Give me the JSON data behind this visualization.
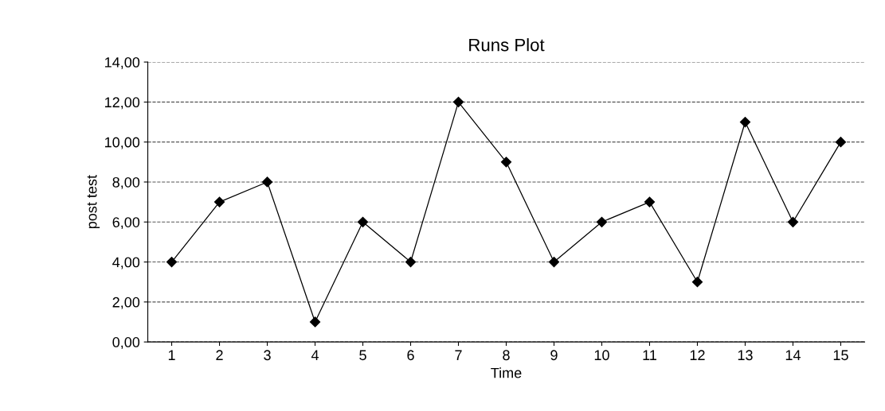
{
  "chart_data": {
    "type": "line",
    "title": "Runs Plot",
    "xlabel": "Time",
    "ylabel": "post test",
    "categories": [
      "1",
      "2",
      "3",
      "4",
      "5",
      "6",
      "7",
      "8",
      "9",
      "10",
      "11",
      "12",
      "13",
      "14",
      "15"
    ],
    "series": [
      {
        "color": "#000000",
        "values": [
          4,
          7,
          8,
          1,
          6,
          4,
          12,
          9,
          4,
          6,
          7,
          3,
          11,
          6,
          10
        ]
      }
    ],
    "ylim": [
      0,
      14
    ],
    "yticks": [
      {
        "value": 0,
        "label": "0,00"
      },
      {
        "value": 2,
        "label": "2,00"
      },
      {
        "value": 4,
        "label": "4,00"
      },
      {
        "value": 6,
        "label": "6,00"
      },
      {
        "value": 8,
        "label": "8,00"
      },
      {
        "value": 10,
        "label": "10,00"
      },
      {
        "value": 12,
        "label": "12,00"
      },
      {
        "value": 14,
        "label": "14,00"
      }
    ],
    "grid": "y",
    "marker": "diamond",
    "line_style": "solid",
    "legend": false
  }
}
